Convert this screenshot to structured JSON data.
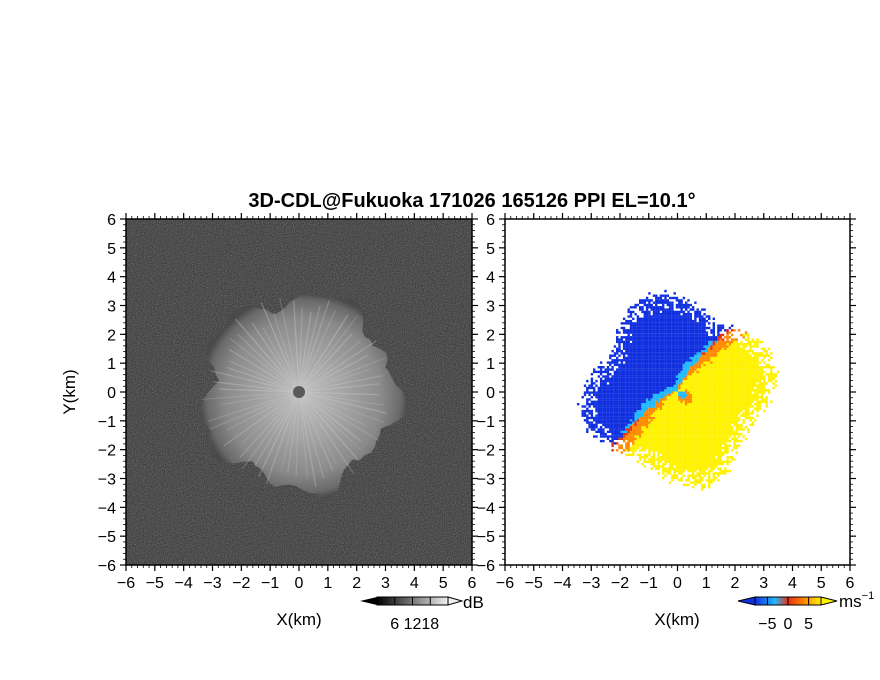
{
  "title": "3D-CDL@Fukuoka 171026 165126 PPI EL=10.1°",
  "axes": {
    "xlabel": "X(km)",
    "ylabel": "Y(km)",
    "xlim": [
      -6,
      6
    ],
    "ylim": [
      -6,
      6
    ],
    "x_ticks": [
      "−6",
      "−5",
      "−4",
      "−3",
      "−2",
      "−1",
      "0",
      "1",
      "2",
      "3",
      "4",
      "5",
      "6"
    ],
    "y_ticks": [
      "6",
      "5",
      "4",
      "3",
      "2",
      "1",
      "0",
      "−1",
      "−2",
      "−3",
      "−4",
      "−5",
      "−6"
    ]
  },
  "chart_data": [
    {
      "type": "heatmap",
      "panel": "left",
      "variable": "SNR",
      "xlabel": "X(km)",
      "ylabel": "Y(km)",
      "xlim": [
        -6,
        6
      ],
      "ylim": [
        -6,
        6
      ],
      "colorscale": "grayscale",
      "colorbar": {
        "unit": "dB",
        "ticks": [
          "6",
          "12",
          "18"
        ],
        "range": [
          0,
          24
        ]
      },
      "echo_radius_km": 3.6,
      "center_mark": {
        "x": 0,
        "y": 0
      }
    },
    {
      "type": "heatmap",
      "panel": "right",
      "variable": "Doppler velocity",
      "xlabel": "X(km)",
      "xlim": [
        -6,
        6
      ],
      "ylim": [
        -6,
        6
      ],
      "colorscale": "blue-cyan-red-orange-yellow",
      "colorbar": {
        "unit": "ms",
        "unit_exp": "−1",
        "ticks": [
          "−5",
          "0",
          "5"
        ],
        "range": [
          -8,
          8
        ]
      },
      "echo_radius_km": 3.5,
      "approaching_sector": "north-west",
      "receding_sector": "south-east"
    }
  ],
  "colors": {
    "snr_background": "#2a2a2a",
    "vel_neg_dark": "#1030e0",
    "vel_neg_light": "#20b8ff",
    "vel_zero": "#e83010",
    "vel_pos_mid": "#ff8a00",
    "vel_pos_high": "#fff200"
  }
}
